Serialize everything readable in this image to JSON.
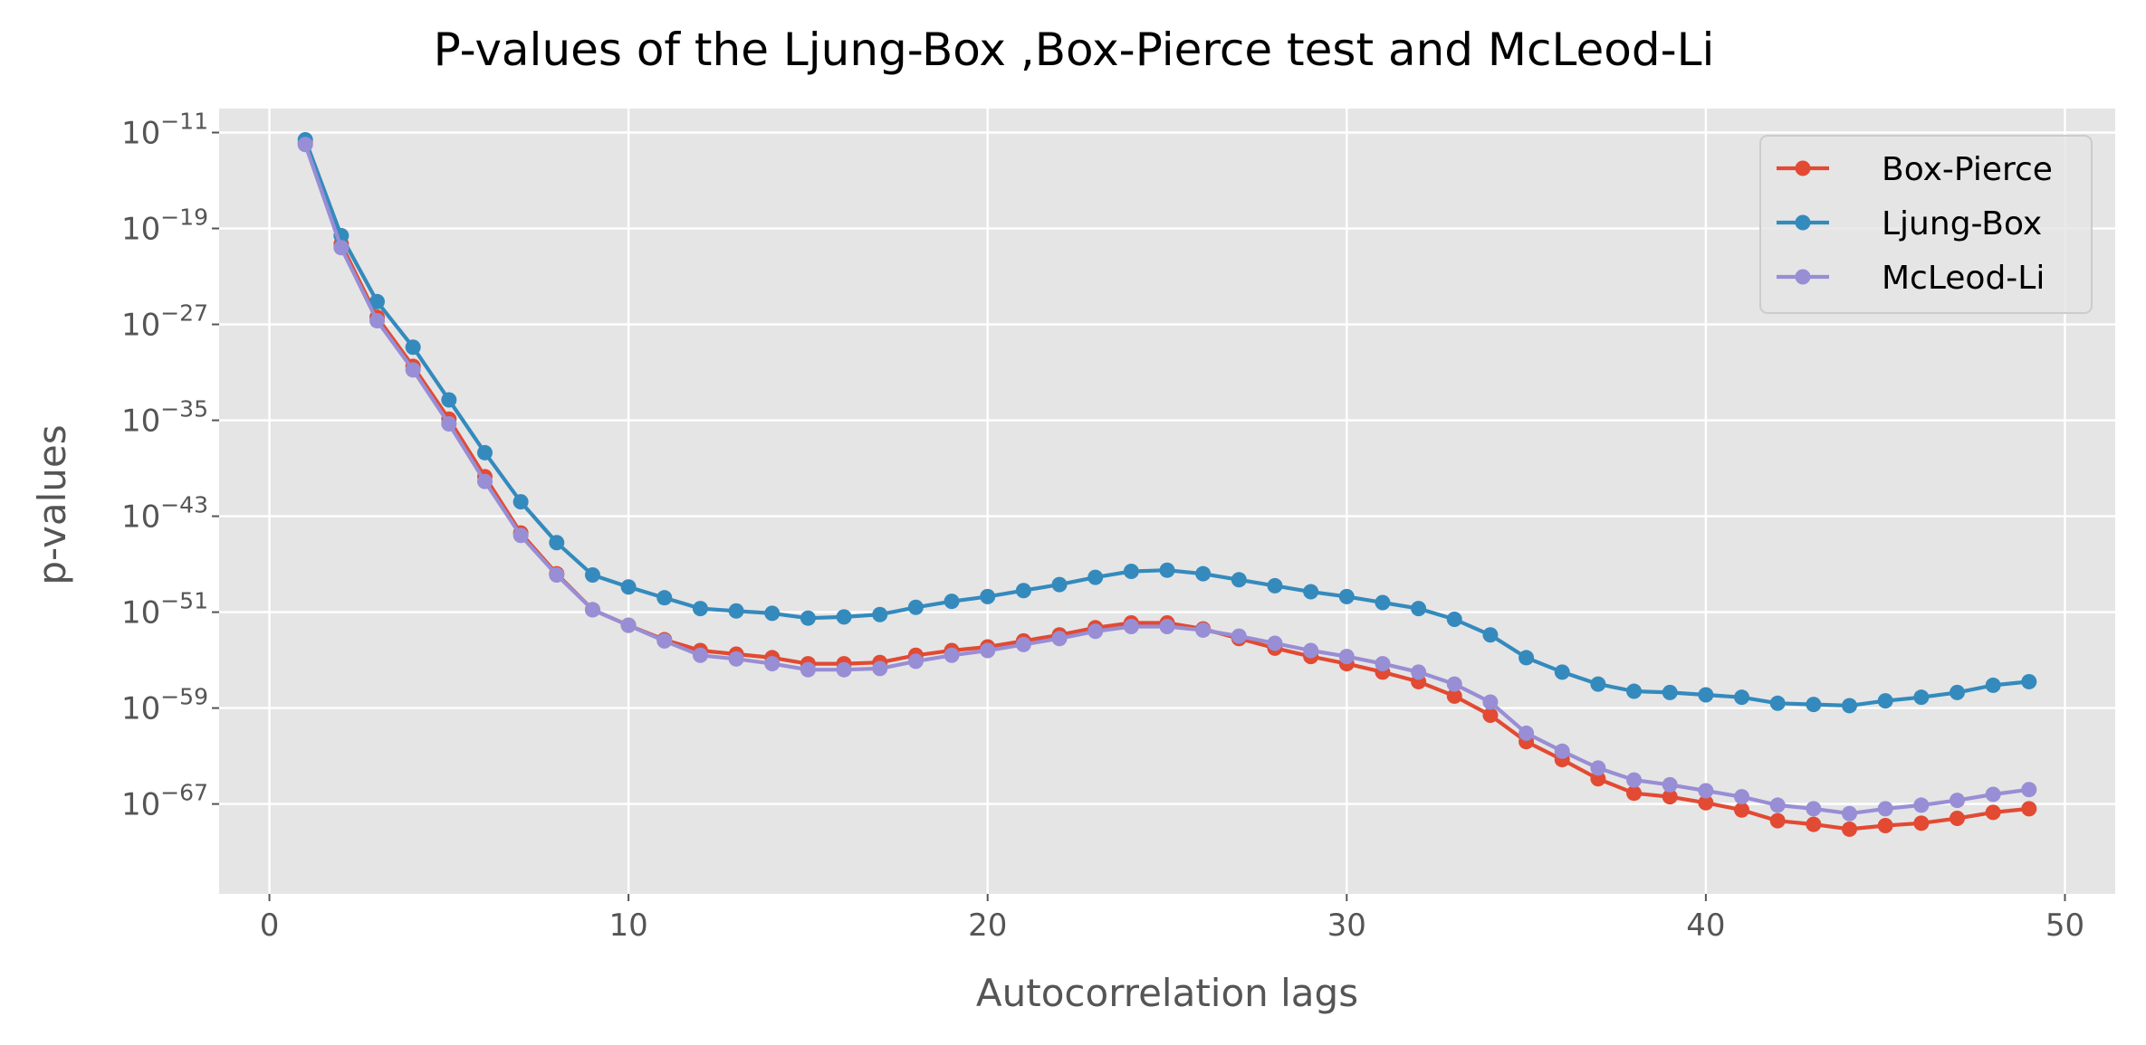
{
  "chart_data": {
    "type": "line",
    "title": "P-values of the Ljung-Box ,Box-Pierce test and McLeod-Li",
    "xlabel": "Autocorrelation lags",
    "ylabel": "p-values",
    "y_scale": "log",
    "xlim": [
      -1.4,
      51.4
    ],
    "ylim_log10": [
      -74.5,
      -9
    ],
    "xticks": [
      0,
      10,
      20,
      30,
      40,
      50
    ],
    "xtick_labels": [
      "0",
      "10",
      "20",
      "30",
      "40",
      "50"
    ],
    "yticks_log10": [
      -11,
      -19,
      -27,
      -35,
      -43,
      -51,
      -59,
      -67
    ],
    "ytick_labels": [
      {
        "base": "10",
        "exp": "−11"
      },
      {
        "base": "10",
        "exp": "−19"
      },
      {
        "base": "10",
        "exp": "−27"
      },
      {
        "base": "10",
        "exp": "−35"
      },
      {
        "base": "10",
        "exp": "−43"
      },
      {
        "base": "10",
        "exp": "−51"
      },
      {
        "base": "10",
        "exp": "−59"
      },
      {
        "base": "10",
        "exp": "−67"
      }
    ],
    "grid": true,
    "legend_position": "top-right",
    "x": [
      1,
      2,
      3,
      4,
      5,
      6,
      7,
      8,
      9,
      10,
      11,
      12,
      13,
      14,
      15,
      16,
      17,
      18,
      19,
      20,
      21,
      22,
      23,
      24,
      25,
      26,
      27,
      28,
      29,
      30,
      31,
      32,
      33,
      34,
      35,
      36,
      37,
      38,
      39,
      40,
      41,
      42,
      43,
      44,
      45,
      46,
      47,
      48,
      49
    ],
    "series": [
      {
        "name": "Box-Pierce",
        "color": "#E24A33",
        "log10_values": [
          -11.9,
          -20.3,
          -26.4,
          -30.5,
          -34.9,
          -39.7,
          -44.4,
          -47.8,
          -50.8,
          -52.1,
          -53.3,
          -54.2,
          -54.5,
          -54.8,
          -55.3,
          -55.3,
          -55.2,
          -54.6,
          -54.2,
          -53.9,
          -53.4,
          -52.9,
          -52.3,
          -51.9,
          -51.9,
          -52.4,
          -53.2,
          -54.0,
          -54.7,
          -55.3,
          -56.0,
          -56.8,
          -58.0,
          -59.6,
          -61.8,
          -63.3,
          -64.9,
          -66.1,
          -66.4,
          -66.9,
          -67.5,
          -68.4,
          -68.7,
          -69.1,
          -68.8,
          -68.6,
          -68.2,
          -67.7,
          -67.4
        ]
      },
      {
        "name": "Ljung-Box",
        "color": "#348ABD",
        "log10_values": [
          -11.6,
          -19.6,
          -25.1,
          -28.9,
          -33.3,
          -37.7,
          -41.8,
          -45.2,
          -47.9,
          -48.9,
          -49.8,
          -50.7,
          -50.9,
          -51.1,
          -51.5,
          -51.4,
          -51.2,
          -50.6,
          -50.1,
          -49.7,
          -49.2,
          -48.7,
          -48.1,
          -47.6,
          -47.5,
          -47.8,
          -48.3,
          -48.8,
          -49.3,
          -49.7,
          -50.2,
          -50.7,
          -51.6,
          -52.9,
          -54.8,
          -56.0,
          -57.0,
          -57.6,
          -57.7,
          -57.9,
          -58.1,
          -58.6,
          -58.7,
          -58.8,
          -58.4,
          -58.1,
          -57.7,
          -57.1,
          -56.8
        ]
      },
      {
        "name": "McLeod-Li",
        "color": "#988ED5",
        "log10_values": [
          -12.0,
          -20.6,
          -26.7,
          -30.8,
          -35.3,
          -40.1,
          -44.6,
          -47.9,
          -50.8,
          -52.1,
          -53.4,
          -54.6,
          -54.9,
          -55.3,
          -55.8,
          -55.8,
          -55.7,
          -55.1,
          -54.6,
          -54.2,
          -53.7,
          -53.2,
          -52.6,
          -52.2,
          -52.2,
          -52.5,
          -53.0,
          -53.6,
          -54.2,
          -54.7,
          -55.3,
          -56.0,
          -57.0,
          -58.5,
          -61.1,
          -62.6,
          -64.0,
          -65.0,
          -65.4,
          -65.9,
          -66.4,
          -67.1,
          -67.4,
          -67.8,
          -67.4,
          -67.1,
          -66.7,
          -66.2,
          -65.8
        ]
      }
    ]
  }
}
